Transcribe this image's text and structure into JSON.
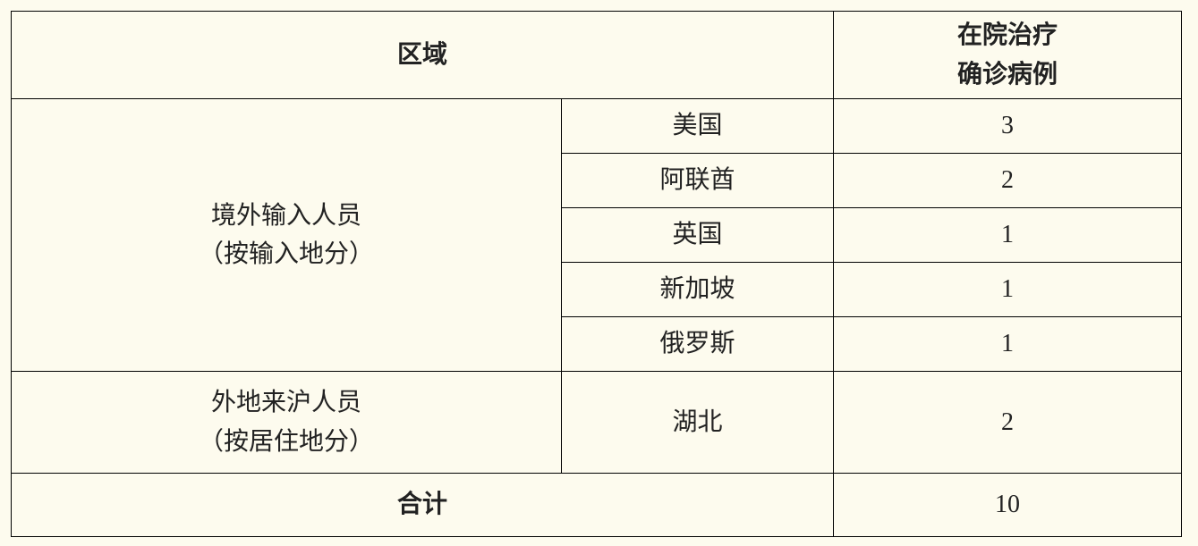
{
  "header": {
    "region": "区域",
    "cases": [
      "在院治疗",
      "确诊病例"
    ]
  },
  "groups": [
    {
      "label": [
        "境外输入人员",
        "（按输入地分）"
      ],
      "rows": [
        {
          "place": "美国",
          "count": 3
        },
        {
          "place": "阿联酋",
          "count": 2
        },
        {
          "place": "英国",
          "count": 1
        },
        {
          "place": "新加坡",
          "count": 1
        },
        {
          "place": "俄罗斯",
          "count": 1
        }
      ]
    },
    {
      "label": [
        "外地来沪人员",
        "（按居住地分）"
      ],
      "rows": [
        {
          "place": "湖北",
          "count": 2
        }
      ]
    }
  ],
  "total": {
    "label": "合计",
    "count": 10
  }
}
